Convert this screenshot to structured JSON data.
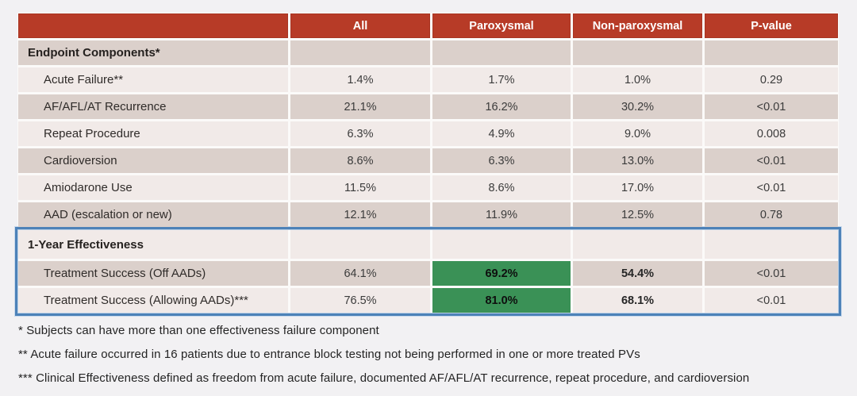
{
  "colors": {
    "header_bg": "#b73b27",
    "row_dark": "#dbd0cb",
    "row_light": "#f1eae8",
    "highlight_green": "#3a9156",
    "box_border_blue": "#4d82b8",
    "slide_bg": "#f2f1f3"
  },
  "table": {
    "columns": [
      "",
      "All",
      "Paroxysmal",
      "Non-paroxysmal",
      "P-value"
    ],
    "main_rows": [
      {
        "label": "Endpoint Components*",
        "section": true,
        "indent": false,
        "shade": "dark",
        "values": [
          "",
          "",
          "",
          ""
        ]
      },
      {
        "label": "Acute Failure**",
        "indent": true,
        "shade": "light",
        "values": [
          "1.4%",
          "1.7%",
          "1.0%",
          "0.29"
        ]
      },
      {
        "label": "AF/AFL/AT Recurrence",
        "indent": true,
        "shade": "dark",
        "values": [
          "21.1%",
          "16.2%",
          "30.2%",
          "<0.01"
        ]
      },
      {
        "label": "Repeat Procedure",
        "indent": true,
        "shade": "light",
        "values": [
          "6.3%",
          "4.9%",
          "9.0%",
          "0.008"
        ]
      },
      {
        "label": "Cardioversion",
        "indent": true,
        "shade": "dark",
        "values": [
          "8.6%",
          "6.3%",
          "13.0%",
          "<0.01"
        ]
      },
      {
        "label": "Amiodarone Use",
        "indent": true,
        "shade": "light",
        "values": [
          "11.5%",
          "8.6%",
          "17.0%",
          "<0.01"
        ]
      },
      {
        "label": "AAD (escalation or new)",
        "indent": true,
        "shade": "dark",
        "values": [
          "12.1%",
          "11.9%",
          "12.5%",
          "0.78"
        ]
      }
    ],
    "box_rows": [
      {
        "label": "1-Year Effectiveness",
        "section": true,
        "indent": false,
        "tall": true,
        "shade": "light",
        "values": [
          "",
          "",
          "",
          ""
        ]
      },
      {
        "label": "Treatment Success (Off AADs)",
        "indent": true,
        "shade": "dark",
        "values": [
          "64.1%",
          "69.2%",
          "54.4%",
          "<0.01"
        ],
        "highlight_col": 1,
        "bold_cols": [
          1,
          2
        ]
      },
      {
        "label": "Treatment Success (Allowing AADs)***",
        "indent": true,
        "shade": "light",
        "values": [
          "76.5%",
          "81.0%",
          "68.1%",
          "<0.01"
        ],
        "highlight_col": 1,
        "bold_cols": [
          1,
          2
        ]
      }
    ]
  },
  "footnotes": [
    "* Subjects can have more than one effectiveness failure component",
    "** Acute failure occurred in 16 patients due to entrance block testing not being performed in one or more treated PVs",
    "*** Clinical Effectiveness defined as freedom from acute failure, documented AF/AFL/AT recurrence, repeat procedure, and cardioversion"
  ]
}
